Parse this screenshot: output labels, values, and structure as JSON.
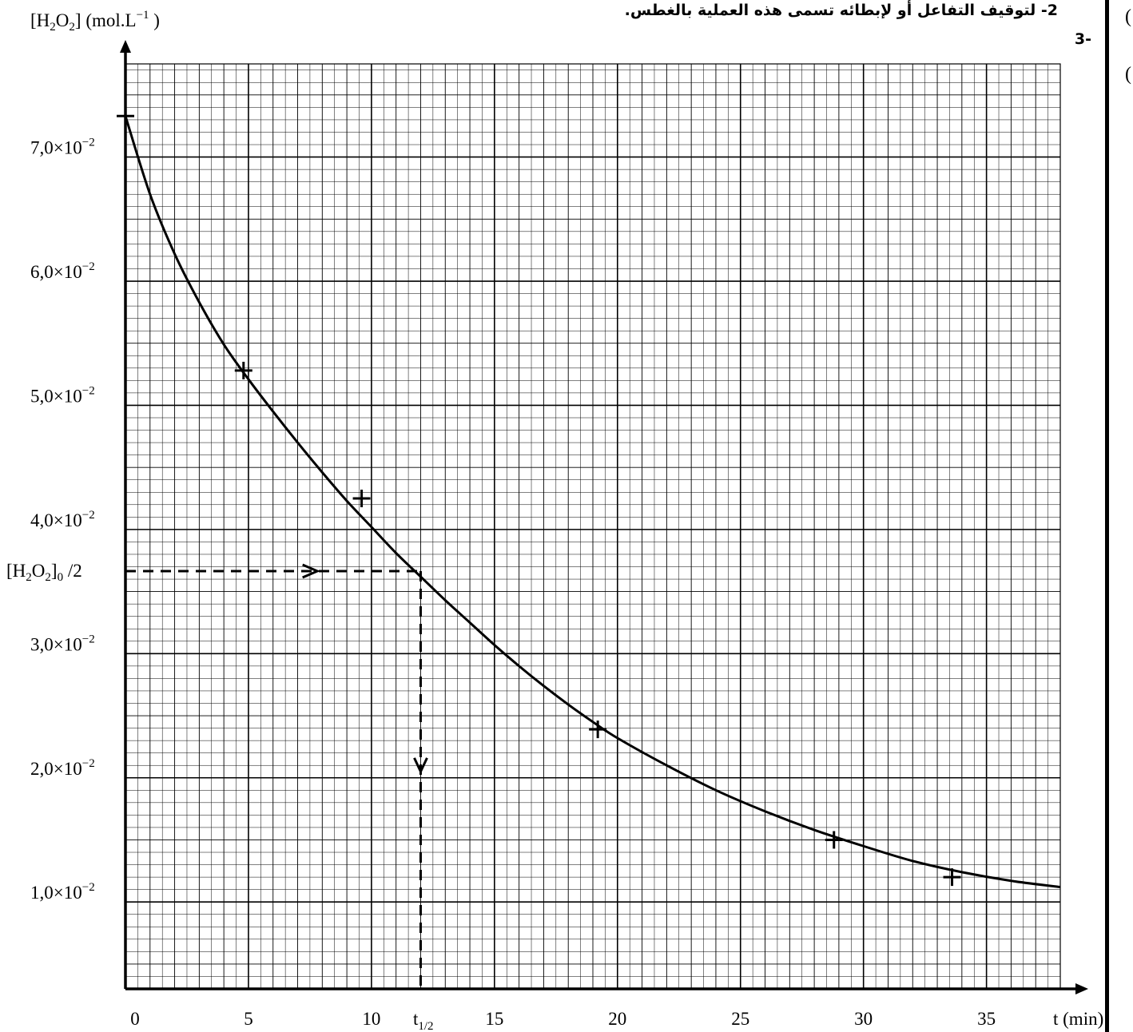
{
  "header": {
    "item2_text": "2- لتوقيف التفاعل أو لإبطائه تسمى هذه العملية بالغطس.",
    "item3_text": "-3",
    "side_mark_1": "(",
    "side_mark_2": "("
  },
  "chart_data": {
    "type": "line",
    "ylabel": "[H2O2] (mol.L−1 )",
    "xlabel": "t (min)",
    "xlim": [
      0,
      38
    ],
    "ylim": [
      0.003,
      0.0775
    ],
    "grid": true,
    "x_ticks": [
      0,
      5,
      10,
      15,
      20,
      25,
      30,
      35
    ],
    "y_ticks": [
      {
        "value": 0.01,
        "label": "1,0×10−2"
      },
      {
        "value": 0.02,
        "label": "2,0×10−2"
      },
      {
        "value": 0.03,
        "label": "3,0×10−2"
      },
      {
        "value": 0.04,
        "label": "4,0×10−2"
      },
      {
        "value": 0.05,
        "label": "5,0×10−2"
      },
      {
        "value": 0.06,
        "label": "6,0×10−2"
      },
      {
        "value": 0.07,
        "label": "7,0×10−2"
      }
    ],
    "series": [
      {
        "curve": {
          "x": [
            0,
            1,
            2,
            3,
            4,
            5,
            6,
            7,
            8,
            9,
            10,
            11,
            12,
            13,
            14,
            15,
            16,
            17,
            18,
            19,
            20,
            22,
            24,
            26,
            28,
            30,
            32,
            34,
            36,
            38
          ],
          "y": [
            0.0733,
            0.067,
            0.0622,
            0.0583,
            0.0549,
            0.0521,
            0.0495,
            0.047,
            0.0446,
            0.0423,
            0.0402,
            0.0381,
            0.0362,
            0.0343,
            0.0325,
            0.0307,
            0.029,
            0.0274,
            0.0259,
            0.0245,
            0.0232,
            0.021,
            0.019,
            0.0173,
            0.0158,
            0.0145,
            0.0133,
            0.0124,
            0.0117,
            0.0112
          ]
        },
        "points": [
          {
            "x": 0,
            "y": 0.0733
          },
          {
            "x": 4.8,
            "y": 0.0528
          },
          {
            "x": 9.6,
            "y": 0.0425
          },
          {
            "x": 19.2,
            "y": 0.0239
          },
          {
            "x": 28.8,
            "y": 0.015
          },
          {
            "x": 33.6,
            "y": 0.012
          }
        ]
      }
    ],
    "annotations": {
      "half_conc_label": "[H2O2]0 /2",
      "half_conc_value": 0.03665,
      "half_life_label": "t1/2",
      "half_life_value": 12.0
    }
  }
}
